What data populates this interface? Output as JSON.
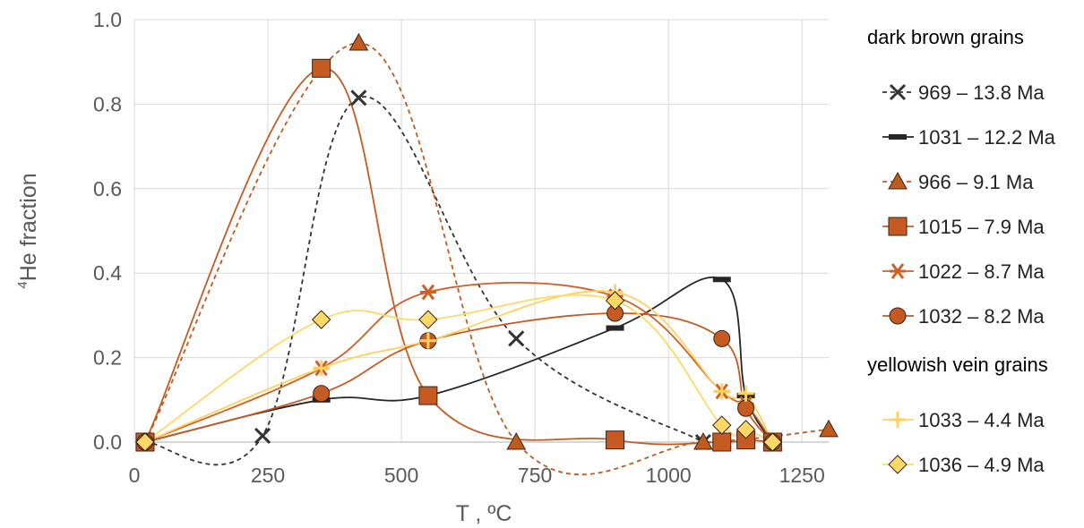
{
  "chart_data": {
    "type": "scatter",
    "xlabel": "T , ºC",
    "ylabel_superscript": "4",
    "ylabel": "He fraction",
    "xlim": [
      0,
      1300
    ],
    "ylim": [
      0,
      1.0
    ],
    "xticks": [
      "0",
      "250",
      "500",
      "750",
      "1000",
      "1250"
    ],
    "yticks": [
      "0.0",
      "0.2",
      "0.4",
      "0.6",
      "0.8",
      "1.0"
    ],
    "grid": true,
    "legend_position": "right",
    "legend_groups": [
      "dark brown grains",
      "yellowish vein grains"
    ],
    "series": [
      {
        "name": "969 – 13.8 Ma",
        "group": 0,
        "marker": "x",
        "color": "#333333",
        "dash": true,
        "x": [
          20,
          240,
          420,
          715,
          1065
        ],
        "y": [
          0.0,
          0.015,
          0.815,
          0.245,
          0.0
        ]
      },
      {
        "name": "1031 – 12.2 Ma",
        "group": 0,
        "marker": "dash",
        "color": "#262626",
        "dash": false,
        "x": [
          20,
          350,
          550,
          900,
          1100,
          1145,
          1195
        ],
        "y": [
          0.0,
          0.1,
          0.11,
          0.27,
          0.385,
          0.11,
          0.0
        ]
      },
      {
        "name": "966 – 9.1 Ma",
        "group": 0,
        "marker": "triangle",
        "color": "#C05A1E",
        "dash": true,
        "x": [
          20,
          420,
          715,
          1065,
          1300
        ],
        "y": [
          0.0,
          0.945,
          0.0,
          0.0,
          0.03
        ]
      },
      {
        "name": "1015 – 7.9 Ma",
        "group": 0,
        "marker": "square",
        "color": "#C55A22",
        "dash": false,
        "x": [
          20,
          350,
          550,
          900,
          1100,
          1145,
          1195
        ],
        "y": [
          0.0,
          0.885,
          0.11,
          0.005,
          0.0,
          0.005,
          0.0
        ]
      },
      {
        "name": "1022 – 8.7 Ma",
        "group": 0,
        "marker": "asterisk",
        "color": "#D05F26",
        "dash": false,
        "x": [
          20,
          350,
          550,
          900,
          1100,
          1145,
          1195
        ],
        "y": [
          0.0,
          0.175,
          0.355,
          0.345,
          0.12,
          0.09,
          0.0
        ]
      },
      {
        "name": "1032 – 8.2 Ma",
        "group": 0,
        "marker": "circle",
        "color": "#C55A22",
        "dash": false,
        "x": [
          20,
          350,
          550,
          900,
          1100,
          1145,
          1195
        ],
        "y": [
          0.0,
          0.115,
          0.24,
          0.305,
          0.245,
          0.08,
          0.0
        ]
      },
      {
        "name": "1033 – 4.4 Ma",
        "group": 1,
        "marker": "plus",
        "color": "#FFD25E",
        "dash": false,
        "x": [
          20,
          350,
          550,
          900,
          1100,
          1145,
          1195
        ],
        "y": [
          0.0,
          0.175,
          0.24,
          0.355,
          0.12,
          0.115,
          0.0
        ]
      },
      {
        "name": "1036 – 4.9 Ma",
        "group": 1,
        "marker": "diamond",
        "color": "#FFD966",
        "dash": false,
        "x": [
          20,
          350,
          550,
          900,
          1100,
          1145,
          1195
        ],
        "y": [
          0.0,
          0.29,
          0.29,
          0.335,
          0.04,
          0.03,
          0.0
        ]
      }
    ]
  }
}
